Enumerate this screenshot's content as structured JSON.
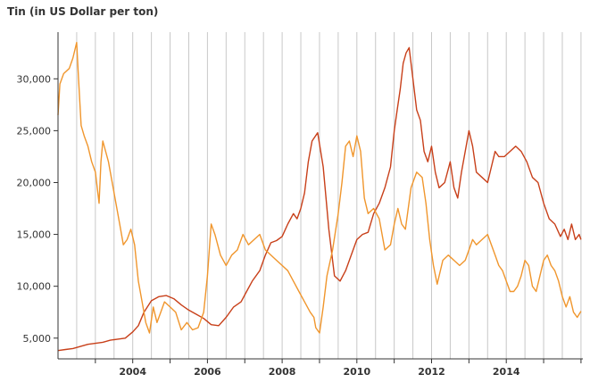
{
  "chart_data": {
    "type": "line",
    "title": "Tin (in US Dollar per ton)",
    "xlabel": "",
    "ylabel": "",
    "xlim": [
      2002.0,
      2016.05
    ],
    "ylim": [
      3000,
      34500
    ],
    "x_ticks": [
      "2004",
      "2006",
      "2008",
      "2010",
      "2012",
      "2014"
    ],
    "y_ticks": [
      "5,000",
      "10,000",
      "15,000",
      "20,000",
      "25,000",
      "30,000"
    ],
    "y_tick_values": [
      5000,
      10000,
      15000,
      20000,
      25000,
      30000
    ],
    "grid": "vertical lines at half-year intervals",
    "legend": "none",
    "series": [
      {
        "color": "#c8401a",
        "x": [
          2002.0,
          2002.2,
          2002.4,
          2002.6,
          2002.8,
          2003.0,
          2003.2,
          2003.4,
          2003.6,
          2003.8,
          2004.0,
          2004.15,
          2004.3,
          2004.5,
          2004.7,
          2004.9,
          2005.1,
          2005.3,
          2005.5,
          2005.7,
          2005.9,
          2006.1,
          2006.3,
          2006.5,
          2006.7,
          2006.9,
          2007.05,
          2007.2,
          2007.4,
          2007.55,
          2007.7,
          2007.85,
          2008.0,
          2008.15,
          2008.3,
          2008.4,
          2008.5,
          2008.6,
          2008.7,
          2008.8,
          2008.95,
          2009.1,
          2009.25,
          2009.4,
          2009.55,
          2009.7,
          2009.85,
          2010.0,
          2010.15,
          2010.3,
          2010.45,
          2010.6,
          2010.75,
          2010.9,
          2011.0,
          2011.08,
          2011.16,
          2011.24,
          2011.32,
          2011.4,
          2011.5,
          2011.6,
          2011.7,
          2011.8,
          2011.9,
          2012.0,
          2012.1,
          2012.2,
          2012.35,
          2012.5,
          2012.6,
          2012.7,
          2012.8,
          2012.9,
          2013.0,
          2013.1,
          2013.2,
          2013.35,
          2013.5,
          2013.6,
          2013.7,
          2013.8,
          2013.95,
          2014.1,
          2014.25,
          2014.4,
          2014.55,
          2014.7,
          2014.85,
          2015.0,
          2015.15,
          2015.3,
          2015.45,
          2015.55,
          2015.65,
          2015.75,
          2015.85,
          2015.95,
          2016.0
        ],
        "values": [
          3800,
          3900,
          4000,
          4200,
          4400,
          4500,
          4600,
          4800,
          4900,
          5000,
          5600,
          6200,
          7500,
          8600,
          9000,
          9100,
          8800,
          8200,
          7700,
          7300,
          6900,
          6300,
          6200,
          7000,
          8000,
          8500,
          9500,
          10500,
          11500,
          13000,
          14200,
          14400,
          14800,
          16000,
          17000,
          16500,
          17500,
          19000,
          22000,
          24000,
          24800,
          21500,
          15500,
          11000,
          10500,
          11500,
          13000,
          14500,
          15000,
          15200,
          17000,
          18000,
          19500,
          21500,
          25000,
          27000,
          29000,
          31500,
          32500,
          33000,
          30000,
          27000,
          26000,
          23000,
          22000,
          23500,
          21000,
          19500,
          20000,
          22000,
          19500,
          18500,
          21000,
          23000,
          25000,
          23500,
          21000,
          20500,
          20000,
          21500,
          23000,
          22500,
          22500,
          23000,
          23500,
          23000,
          22000,
          20500,
          20000,
          18000,
          16500,
          16000,
          14800,
          15500,
          14500,
          16000,
          14500,
          15000,
          14500
        ]
      },
      {
        "color": "#f0962d",
        "x": [
          2002.0,
          2002.05,
          2002.15,
          2002.3,
          2002.4,
          2002.5,
          2002.55,
          2002.62,
          2002.7,
          2002.8,
          2002.9,
          2003.0,
          2003.1,
          2003.15,
          2003.2,
          2003.35,
          2003.5,
          2003.65,
          2003.75,
          2003.85,
          2003.95,
          2004.05,
          2004.15,
          2004.25,
          2004.35,
          2004.45,
          2004.55,
          2004.65,
          2004.75,
          2004.85,
          2005.0,
          2005.15,
          2005.3,
          2005.45,
          2005.6,
          2005.75,
          2005.9,
          2006.0,
          2006.1,
          2006.2,
          2006.35,
          2006.5,
          2006.65,
          2006.8,
          2006.95,
          2007.1,
          2007.25,
          2007.4,
          2007.55,
          2007.7,
          2007.85,
          2008.0,
          2008.15,
          2008.3,
          2008.45,
          2008.6,
          2008.75,
          2008.85,
          2008.9,
          2009.0,
          2009.1,
          2009.2,
          2009.35,
          2009.5,
          2009.6,
          2009.7,
          2009.8,
          2009.9,
          2010.0,
          2010.1,
          2010.2,
          2010.3,
          2010.45,
          2010.6,
          2010.75,
          2010.9,
          2011.0,
          2011.1,
          2011.2,
          2011.3,
          2011.45,
          2011.6,
          2011.75,
          2011.85,
          2011.95,
          2012.05,
          2012.15,
          2012.3,
          2012.45,
          2012.6,
          2012.75,
          2012.9,
          2013.0,
          2013.1,
          2013.2,
          2013.35,
          2013.5,
          2013.6,
          2013.7,
          2013.8,
          2013.9,
          2014.0,
          2014.1,
          2014.2,
          2014.3,
          2014.4,
          2014.5,
          2014.6,
          2014.7,
          2014.8,
          2014.9,
          2015.0,
          2015.1,
          2015.2,
          2015.3,
          2015.4,
          2015.5,
          2015.6,
          2015.7,
          2015.8,
          2015.9,
          2016.0
        ],
        "values": [
          26500,
          29500,
          30500,
          31000,
          32000,
          33500,
          30000,
          25500,
          24500,
          23500,
          22000,
          21000,
          18000,
          22000,
          24000,
          22000,
          19000,
          16000,
          14000,
          14500,
          15500,
          14000,
          10500,
          8500,
          6500,
          5500,
          8000,
          6500,
          7500,
          8500,
          8000,
          7500,
          5800,
          6500,
          5800,
          6000,
          7500,
          11000,
          16000,
          15000,
          13000,
          12000,
          13000,
          13500,
          15000,
          14000,
          14500,
          15000,
          13500,
          13000,
          12500,
          12000,
          11500,
          10500,
          9500,
          8500,
          7500,
          7000,
          6000,
          5500,
          8000,
          11000,
          13500,
          17000,
          20000,
          23500,
          24000,
          22500,
          24500,
          23000,
          18500,
          17000,
          17500,
          16500,
          13500,
          14000,
          16000,
          17500,
          16000,
          15500,
          19500,
          21000,
          20500,
          18000,
          14500,
          12000,
          10200,
          12500,
          13000,
          12500,
          12000,
          12500,
          13500,
          14500,
          14000,
          14500,
          15000,
          14000,
          13000,
          12000,
          11500,
          10500,
          9500,
          9500,
          10000,
          11000,
          12500,
          12000,
          10000,
          9500,
          11000,
          12500,
          13000,
          12000,
          11500,
          10500,
          9000,
          8000,
          9000,
          7500,
          7000,
          7600
        ]
      }
    ]
  }
}
